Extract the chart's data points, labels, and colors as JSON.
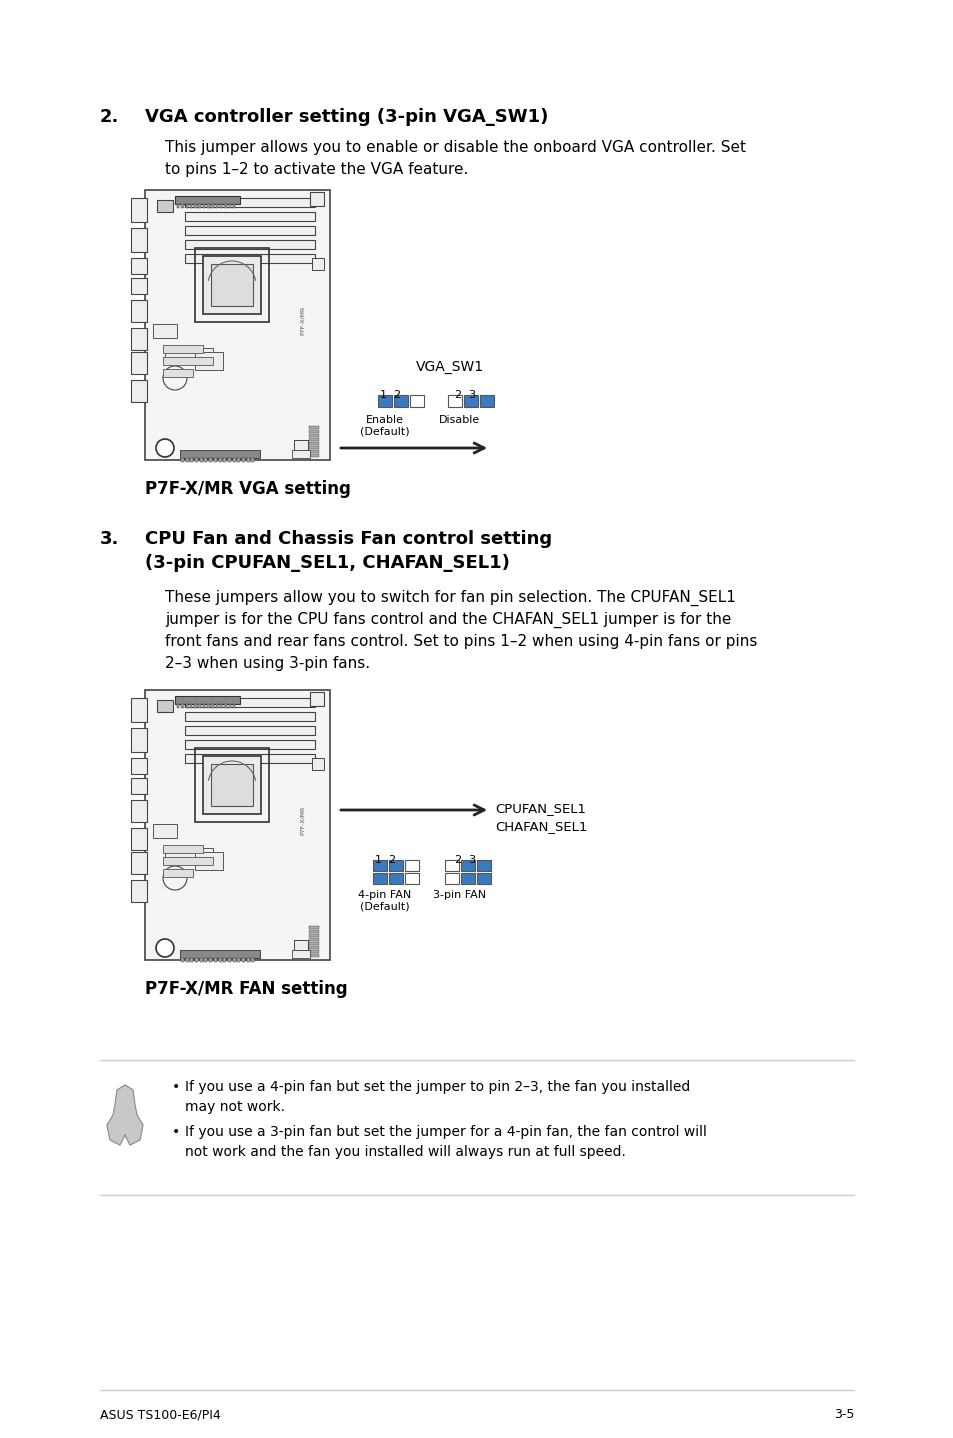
{
  "page_bg": "#ffffff",
  "text_color": "#000000",
  "section2_title": "VGA controller setting (3-pin VGA_SW1)",
  "section2_body1": "This jumper allows you to enable or disable the onboard VGA controller. Set",
  "section2_body2": "to pins 1–2 to activate the VGA feature.",
  "section2_board_label": "P7F-X/MR VGA setting",
  "vga_sw1_label": "VGA_SW1",
  "vga_enable_label": "Enable\n(Default)",
  "vga_disable_label": "Disable",
  "section3_title_line1": "CPU Fan and Chassis Fan control setting",
  "section3_title_line2": "(3-pin CPUFAN_SEL1, CHAFAN_SEL1)",
  "section3_body1": "These jumpers allow you to switch for fan pin selection. The CPUFAN_SEL1",
  "section3_body2": "jumper is for the CPU fans control and the CHAFAN_SEL1 jumper is for the",
  "section3_body3": "front fans and rear fans control. Set to pins 1–2 when using 4-pin fans or pins",
  "section3_body4": "2–3 when using 3-pin fans.",
  "section3_board_label": "P7F-X/MR FAN setting",
  "cpufan_label1": "CPUFAN_SEL1",
  "cpufan_label2": "CHAFAN_SEL1",
  "fan_4pin_label": "4-pin FAN\n(Default)",
  "fan_3pin_label": "3-pin FAN",
  "note_bullet1a": "If you use a 4-pin fan but set the jumper to pin 2–3, the fan you installed",
  "note_bullet1b": "may not work.",
  "note_bullet2a": "If you use a 3-pin fan but set the jumper for a 4-pin fan, the fan control will",
  "note_bullet2b": "not work and the fan you installed will always run at full speed.",
  "footer_left": "ASUS TS100-E6/PI4",
  "footer_right": "3-5",
  "pin_fill_color": "#3a7abf",
  "pin_empty_color": "#ffffff",
  "pin_outline_color": "#555555",
  "board_edge": "#444444",
  "board_fill": "#f5f5f5"
}
